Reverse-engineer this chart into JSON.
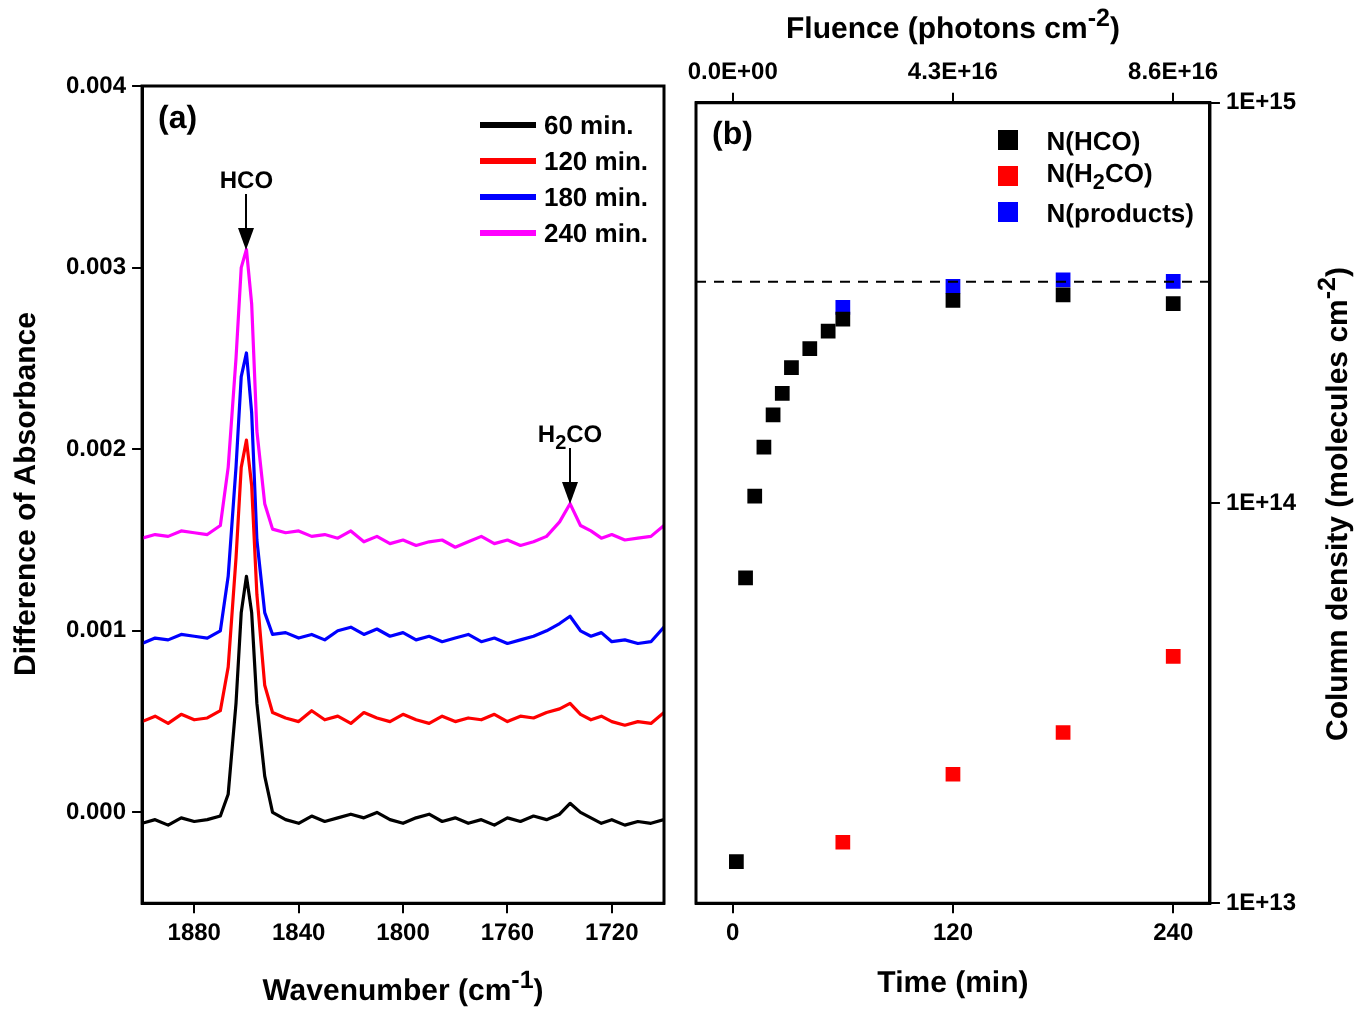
{
  "chart_data": [
    {
      "type": "line",
      "xlabel": "Wavenumber (cm$^{-1}$)",
      "ylabel": "Difference of Absorbance",
      "xlim": [
        1900,
        1700
      ],
      "xticks": [
        1880,
        1840,
        1800,
        1760,
        1720
      ],
      "ylim": [
        -0.0005,
        0.004
      ],
      "yticks": [
        {
          "value": 0,
          "label": "0.000"
        },
        {
          "value": 0.001,
          "label": "0.001"
        },
        {
          "value": 0.002,
          "label": "0.002"
        },
        {
          "value": 0.003,
          "label": "0.003"
        },
        {
          "value": 0.004,
          "label": "0.004"
        }
      ],
      "grid": false,
      "legend": "top right",
      "marker": "none",
      "annotations": [
        "(a)",
        {
          "text": "HCO",
          "x": 1860,
          "y": 0.0031
        },
        {
          "text": "H$_{2}$CO",
          "x": 1736,
          "y": 0.0017
        }
      ],
      "x": [
        1900,
        1895,
        1890,
        1885,
        1880,
        1875,
        1870,
        1867,
        1864,
        1862,
        1860,
        1858,
        1856,
        1853,
        1850,
        1845,
        1840,
        1835,
        1830,
        1825,
        1820,
        1815,
        1810,
        1805,
        1800,
        1795,
        1790,
        1785,
        1780,
        1775,
        1770,
        1765,
        1760,
        1755,
        1750,
        1745,
        1740,
        1736,
        1732,
        1728,
        1724,
        1720,
        1715,
        1710,
        1705,
        1700
      ],
      "series": [
        {
          "name": "60 min.",
          "color": "#000000",
          "values": [
            -6e-05,
            -4e-05,
            -7e-05,
            -3e-05,
            -5e-05,
            -4e-05,
            -2e-05,
            0.0001,
            0.0006,
            0.0011,
            0.0013,
            0.0011,
            0.0006,
            0.0002,
            0.0,
            -4e-05,
            -6e-05,
            -2e-05,
            -5e-05,
            -3e-05,
            -1e-05,
            -3e-05,
            0.0,
            -4e-05,
            -6e-05,
            -3e-05,
            -1e-05,
            -5e-05,
            -3e-05,
            -6e-05,
            -4e-05,
            -7e-05,
            -3e-05,
            -5e-05,
            -2e-05,
            -4e-05,
            -1e-05,
            5e-05,
            0.0,
            -3e-05,
            -6e-05,
            -4e-05,
            -7e-05,
            -5e-05,
            -6e-05,
            -4e-05
          ]
        },
        {
          "name": "120 min.",
          "color": "#ff0000",
          "values": [
            0.0005,
            0.00053,
            0.00049,
            0.00054,
            0.00051,
            0.00052,
            0.00056,
            0.0008,
            0.0014,
            0.0019,
            0.00205,
            0.0018,
            0.0012,
            0.0007,
            0.00055,
            0.00052,
            0.0005,
            0.00056,
            0.00051,
            0.00053,
            0.00049,
            0.00055,
            0.00052,
            0.0005,
            0.00054,
            0.00051,
            0.00049,
            0.00053,
            0.0005,
            0.00052,
            0.00051,
            0.00054,
            0.0005,
            0.00053,
            0.00052,
            0.00055,
            0.00057,
            0.0006,
            0.00054,
            0.00051,
            0.00053,
            0.0005,
            0.00048,
            0.0005,
            0.00049,
            0.00055
          ]
        },
        {
          "name": "180 min.",
          "color": "#0000ff",
          "values": [
            0.00093,
            0.00096,
            0.00095,
            0.00098,
            0.00097,
            0.00096,
            0.001,
            0.0013,
            0.0019,
            0.0024,
            0.00253,
            0.0022,
            0.0015,
            0.0011,
            0.00098,
            0.00099,
            0.00096,
            0.00098,
            0.00095,
            0.001,
            0.00102,
            0.00098,
            0.00101,
            0.00097,
            0.00099,
            0.00095,
            0.00097,
            0.00094,
            0.00096,
            0.00098,
            0.00094,
            0.00096,
            0.00093,
            0.00095,
            0.00097,
            0.001,
            0.00104,
            0.00108,
            0.001,
            0.00097,
            0.00099,
            0.00094,
            0.00095,
            0.00093,
            0.00094,
            0.00102
          ]
        },
        {
          "name": "240 min.",
          "color": "#ff00ff",
          "values": [
            0.00151,
            0.00153,
            0.00152,
            0.00155,
            0.00154,
            0.00153,
            0.00158,
            0.0019,
            0.0025,
            0.003,
            0.0031,
            0.0028,
            0.0021,
            0.0017,
            0.00156,
            0.00154,
            0.00155,
            0.00152,
            0.00153,
            0.00151,
            0.00155,
            0.00149,
            0.00152,
            0.00148,
            0.0015,
            0.00147,
            0.00149,
            0.0015,
            0.00146,
            0.00149,
            0.00152,
            0.00148,
            0.0015,
            0.00147,
            0.00149,
            0.00152,
            0.0016,
            0.0017,
            0.00158,
            0.00155,
            0.00151,
            0.00153,
            0.0015,
            0.00151,
            0.00152,
            0.00158
          ]
        }
      ]
    },
    {
      "type": "scatter",
      "xlabel": "Time (min)",
      "x2label": "Fluence (photons cm$^{-2}$)",
      "y2label": "Column density (molecules cm$^{-2}$)",
      "xlim": [
        -20,
        260
      ],
      "xticks": [
        0,
        120,
        240
      ],
      "x2lim": [
        -7170000000000000.0,
        9.32e+16
      ],
      "x2ticks": [
        {
          "value": 0,
          "label": "0.0E+00"
        },
        {
          "value": 4.3e+16,
          "label": "4.3E+16"
        },
        {
          "value": 8.6e+16,
          "label": "8.6E+16"
        }
      ],
      "y2lim": [
        10000000000000.0,
        1000000000000000.0
      ],
      "y2ticks": [
        {
          "value": 10000000000000.0,
          "label": "1E+13"
        },
        {
          "value": 100000000000000.0,
          "label": "1E+14"
        },
        {
          "value": 1000000000000000.0,
          "label": "1E+15"
        }
      ],
      "log": "y2",
      "grid": false,
      "legend": "top right",
      "marker": "square",
      "annotations": [
        "(b)"
      ],
      "ref_lines": [
        {
          "axis": "y2",
          "value": 357000000000000.0,
          "color": "#000000",
          "line_style": "dashed"
        }
      ],
      "series": [
        {
          "name": "N(HCO)",
          "color": "#000000",
          "axis": "y2",
          "x": [
            2,
            7,
            12,
            17,
            22,
            27,
            32,
            42,
            52,
            60,
            120,
            180,
            240
          ],
          "values": [
            12700000000000.0,
            65000000000000.0,
            104000000000000.0,
            138000000000000.0,
            166000000000000.0,
            188000000000000.0,
            218000000000000.0,
            243000000000000.0,
            269000000000000.0,
            288000000000000.0,
            321000000000000.0,
            331000000000000.0,
            315000000000000.0
          ]
        },
        {
          "name": "N(H$_{2}$CO)",
          "color": "#ff0000",
          "axis": "y2",
          "x": [
            60,
            120,
            180,
            240
          ],
          "values": [
            14200000000000.0,
            21000000000000.0,
            26700000000000.0,
            41400000000000.0
          ]
        },
        {
          "name": "N(products)",
          "color": "#0000ff",
          "axis": "y2",
          "x": [
            60,
            120,
            180,
            240
          ],
          "values": [
            308000000000000.0,
            348000000000000.0,
            361000000000000.0,
            358000000000000.0
          ]
        }
      ]
    }
  ]
}
